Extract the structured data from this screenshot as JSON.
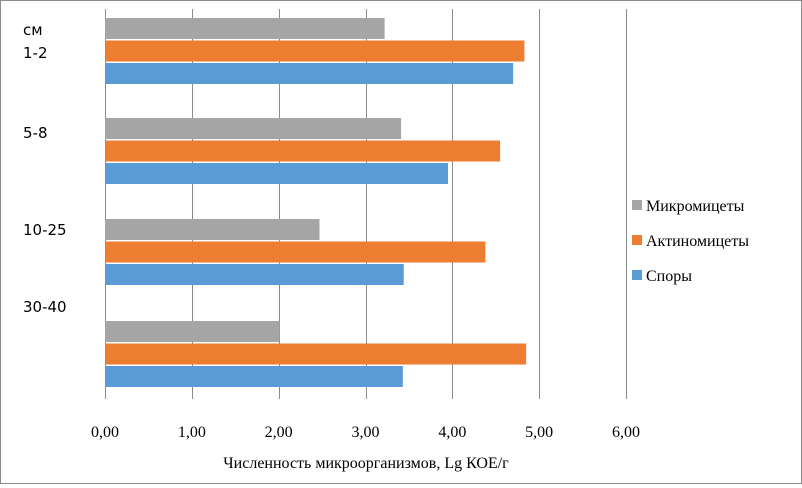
{
  "chart_data": {
    "type": "bar",
    "orientation": "horizontal",
    "unit_label": "см",
    "categories": [
      "1-2",
      "5-8",
      "10-25",
      "30-40"
    ],
    "series": [
      {
        "name": "Микромицеты",
        "color": "#a5a5a5",
        "values": [
          3.22,
          3.41,
          2.47,
          2.01
        ]
      },
      {
        "name": "Актиномицеты",
        "color": "#ed7d31",
        "values": [
          4.83,
          4.55,
          4.38,
          4.85
        ]
      },
      {
        "name": "Споры",
        "color": "#5b9bd5",
        "values": [
          4.7,
          3.95,
          3.44,
          3.43
        ]
      }
    ],
    "xlabel": "Численность микроорганизмов, Lg КОЕ/г",
    "xlim": [
      0,
      6
    ],
    "x_ticks": [
      "0,00",
      "1,00",
      "2,00",
      "3,00",
      "4,00",
      "5,00",
      "6,00"
    ],
    "grid": "vertical",
    "legend_position": "right"
  }
}
